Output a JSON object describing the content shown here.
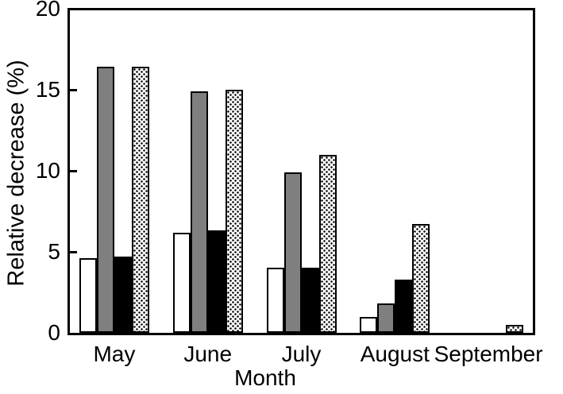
{
  "chart_data": {
    "type": "bar",
    "title": "",
    "xlabel": "Month",
    "ylabel": "Relative decrease (%)",
    "ylim": [
      0,
      20
    ],
    "yticks": [
      0,
      5,
      10,
      15,
      20
    ],
    "categories": [
      "May",
      "June",
      "July",
      "August",
      "September"
    ],
    "series": [
      {
        "name": "white-bar-series",
        "style": "white",
        "values": [
          4.6,
          6.2,
          4.0,
          1.0,
          0
        ]
      },
      {
        "name": "gray-bar-series",
        "style": "gray",
        "values": [
          16.4,
          14.9,
          9.9,
          1.8,
          0
        ]
      },
      {
        "name": "black-bar-series",
        "style": "black",
        "values": [
          4.7,
          6.3,
          4.0,
          3.3,
          0
        ]
      },
      {
        "name": "dotted-bar-series",
        "style": "dotted",
        "values": [
          16.4,
          15.0,
          11.0,
          6.7,
          0.5
        ]
      }
    ],
    "legend": "none",
    "grid": false
  },
  "colors": {
    "background": "#ffffff",
    "axis": "#000000",
    "bar_white_fill": "#ffffff",
    "bar_gray_fill": "#7f7f7f",
    "bar_black_fill": "#000000",
    "bar_dotted_fill": "#ffffff",
    "bar_border": "#000000"
  }
}
